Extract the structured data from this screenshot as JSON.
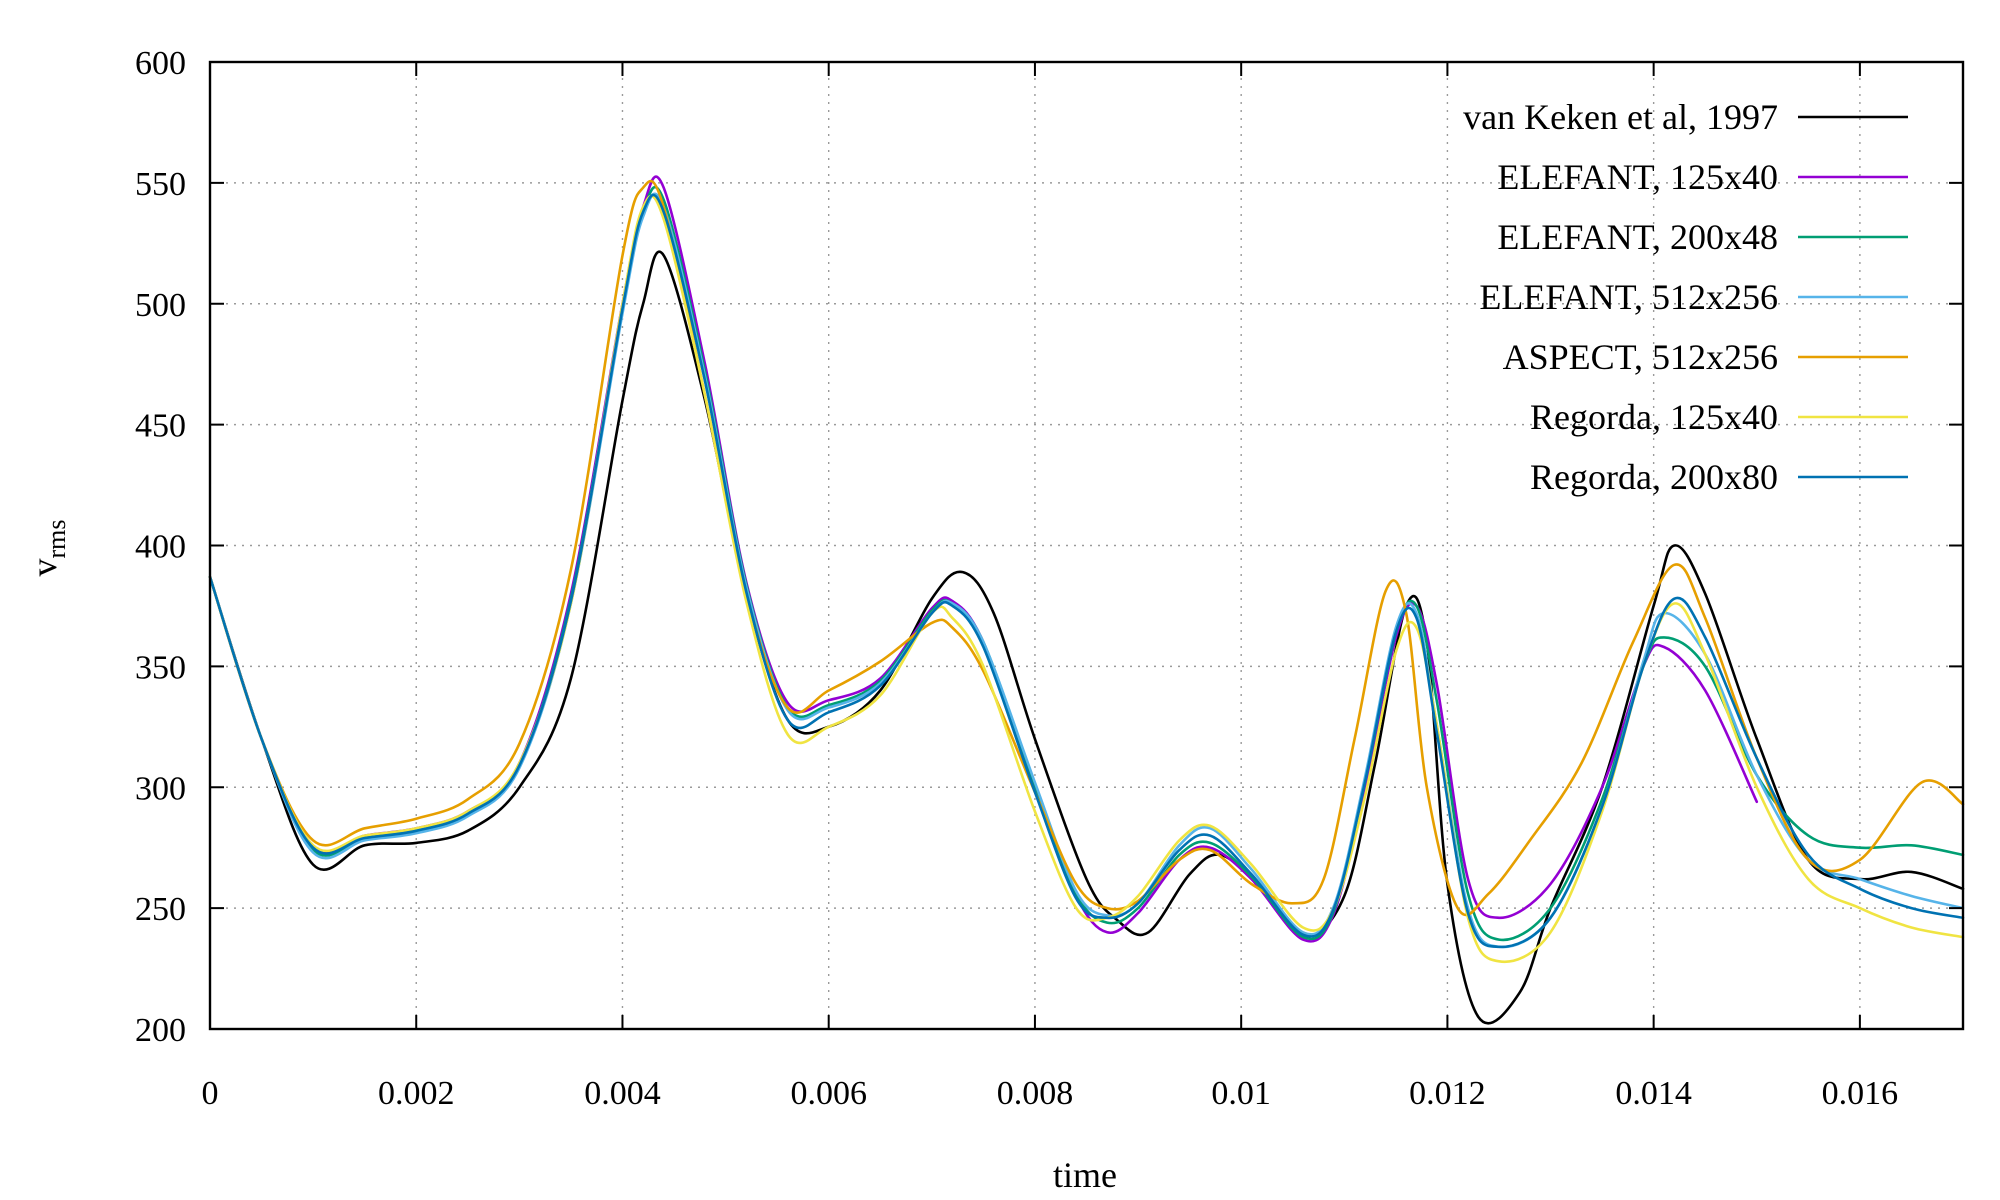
{
  "chart_data": {
    "type": "line",
    "title": "",
    "xlabel": "time",
    "ylabel": "v",
    "ylabel_sub": "rms",
    "xlim": [
      0,
      0.017
    ],
    "ylim": [
      200,
      600
    ],
    "x_ticks": [
      0,
      0.002,
      0.004,
      0.006,
      0.008,
      0.01,
      0.012,
      0.014,
      0.016
    ],
    "x_tick_labels": [
      "0",
      "0.002",
      "0.004",
      "0.006",
      "0.008",
      "0.01",
      "0.012",
      "0.014",
      "0.016"
    ],
    "y_ticks": [
      200,
      250,
      300,
      350,
      400,
      450,
      500,
      550,
      600
    ],
    "y_tick_labels": [
      "200",
      "250",
      "300",
      "350",
      "400",
      "450",
      "500",
      "550",
      "600"
    ],
    "grid": true,
    "legend_position": "top-right",
    "series": [
      {
        "name": "van Keken et al, 1997",
        "color": "#000000",
        "x": [
          0,
          0.0005,
          0.001,
          0.0015,
          0.002,
          0.0025,
          0.003,
          0.0035,
          0.004,
          0.0042,
          0.0044,
          0.0048,
          0.0052,
          0.0056,
          0.006,
          0.0065,
          0.007,
          0.0073,
          0.0076,
          0.008,
          0.0085,
          0.0088,
          0.0091,
          0.0095,
          0.0098,
          0.0102,
          0.0106,
          0.011,
          0.0113,
          0.0116,
          0.0118,
          0.012,
          0.0123,
          0.0127,
          0.013,
          0.0135,
          0.014,
          0.0142,
          0.0145,
          0.015,
          0.0155,
          0.016,
          0.0165,
          0.017
        ],
        "y": [
          387,
          320,
          268,
          276,
          277,
          282,
          300,
          345,
          460,
          500,
          520,
          460,
          380,
          328,
          325,
          340,
          378,
          389,
          372,
          320,
          262,
          245,
          240,
          264,
          272,
          258,
          238,
          255,
          310,
          375,
          360,
          260,
          205,
          215,
          250,
          300,
          375,
          400,
          380,
          320,
          270,
          262,
          265,
          258
        ]
      },
      {
        "name": "ELEFANT, 125x40",
        "color": "#9400d3",
        "x": [
          0,
          0.0005,
          0.001,
          0.0015,
          0.002,
          0.0025,
          0.003,
          0.0035,
          0.004,
          0.0042,
          0.0044,
          0.0048,
          0.0052,
          0.0056,
          0.006,
          0.0065,
          0.007,
          0.0072,
          0.0075,
          0.008,
          0.0084,
          0.0087,
          0.009,
          0.0094,
          0.0097,
          0.0101,
          0.0106,
          0.0109,
          0.0112,
          0.0115,
          0.0117,
          0.0119,
          0.0122,
          0.0125,
          0.013,
          0.0135,
          0.0139,
          0.0141,
          0.0145,
          0.015
        ],
        "y": [
          387,
          320,
          275,
          280,
          283,
          290,
          310,
          380,
          500,
          540,
          548,
          475,
          385,
          335,
          336,
          345,
          374,
          377,
          360,
          300,
          255,
          240,
          248,
          270,
          275,
          262,
          237,
          248,
          300,
          362,
          375,
          342,
          262,
          246,
          260,
          300,
          350,
          358,
          340,
          294
        ]
      },
      {
        "name": "ELEFANT, 200x48",
        "color": "#009e73",
        "x": [
          0,
          0.0005,
          0.001,
          0.0015,
          0.002,
          0.0025,
          0.003,
          0.0035,
          0.004,
          0.0042,
          0.0044,
          0.0048,
          0.0052,
          0.0056,
          0.006,
          0.0065,
          0.007,
          0.0072,
          0.0075,
          0.008,
          0.0084,
          0.0087,
          0.009,
          0.0094,
          0.0097,
          0.0101,
          0.0106,
          0.0109,
          0.0112,
          0.0115,
          0.0117,
          0.0119,
          0.0122,
          0.0125,
          0.013,
          0.0135,
          0.0139,
          0.0141,
          0.0145,
          0.015,
          0.0155,
          0.016,
          0.0165,
          0.017
        ],
        "y": [
          387,
          320,
          274,
          279,
          282,
          289,
          309,
          378,
          498,
          538,
          543,
          472,
          384,
          333,
          334,
          344,
          373,
          376,
          360,
          301,
          256,
          244,
          250,
          272,
          277,
          263,
          238,
          249,
          302,
          364,
          375,
          335,
          256,
          237,
          250,
          295,
          350,
          362,
          350,
          305,
          280,
          275,
          276,
          272
        ]
      },
      {
        "name": "ELEFANT, 512x256",
        "color": "#56b4e9",
        "x": [
          0,
          0.0005,
          0.001,
          0.0015,
          0.002,
          0.0025,
          0.003,
          0.0035,
          0.004,
          0.0042,
          0.0044,
          0.0048,
          0.0052,
          0.0056,
          0.006,
          0.0065,
          0.007,
          0.0072,
          0.0075,
          0.008,
          0.0084,
          0.0087,
          0.009,
          0.0094,
          0.0097,
          0.0101,
          0.0106,
          0.0109,
          0.0112,
          0.0115,
          0.0117,
          0.0119,
          0.0122,
          0.0125,
          0.013,
          0.0135,
          0.0139,
          0.0141,
          0.0145,
          0.015,
          0.0155,
          0.016,
          0.0165,
          0.017
        ],
        "y": [
          387,
          320,
          273,
          278,
          281,
          288,
          308,
          376,
          496,
          536,
          540,
          470,
          383,
          332,
          333,
          343,
          372,
          376,
          360,
          302,
          257,
          247,
          252,
          276,
          283,
          266,
          240,
          251,
          304,
          366,
          372,
          325,
          250,
          234,
          246,
          292,
          352,
          372,
          355,
          305,
          270,
          262,
          255,
          250
        ]
      },
      {
        "name": "ASPECT, 512x256",
        "color": "#e69f00",
        "x": [
          0,
          0.0005,
          0.001,
          0.0015,
          0.002,
          0.0025,
          0.003,
          0.0035,
          0.004,
          0.0042,
          0.0044,
          0.0048,
          0.0052,
          0.0056,
          0.006,
          0.0065,
          0.007,
          0.0072,
          0.0075,
          0.008,
          0.0084,
          0.0087,
          0.009,
          0.0094,
          0.0097,
          0.0101,
          0.0105,
          0.0108,
          0.0111,
          0.0114,
          0.0116,
          0.0118,
          0.0121,
          0.0124,
          0.0128,
          0.0133,
          0.0138,
          0.0142,
          0.0145,
          0.015,
          0.0155,
          0.016,
          0.0166,
          0.017
        ],
        "y": [
          387,
          320,
          278,
          283,
          287,
          295,
          318,
          390,
          520,
          548,
          540,
          462,
          380,
          333,
          340,
          352,
          368,
          366,
          348,
          298,
          260,
          250,
          253,
          270,
          274,
          260,
          252,
          262,
          320,
          381,
          372,
          300,
          250,
          256,
          278,
          310,
          360,
          392,
          370,
          312,
          270,
          270,
          302,
          293
        ]
      },
      {
        "name": "Regorda, 125x40",
        "color": "#f0e442",
        "x": [
          0,
          0.0005,
          0.001,
          0.0015,
          0.002,
          0.0025,
          0.003,
          0.0035,
          0.004,
          0.0042,
          0.0044,
          0.0048,
          0.0052,
          0.0056,
          0.006,
          0.0065,
          0.007,
          0.0072,
          0.0075,
          0.008,
          0.0084,
          0.0087,
          0.009,
          0.0094,
          0.0097,
          0.0101,
          0.0106,
          0.0109,
          0.0112,
          0.0115,
          0.0117,
          0.0119,
          0.0122,
          0.0125,
          0.013,
          0.0135,
          0.0139,
          0.0142,
          0.0145,
          0.015,
          0.0155,
          0.016,
          0.0165,
          0.017
        ],
        "y": [
          387,
          320,
          276,
          280,
          283,
          290,
          310,
          376,
          500,
          540,
          535,
          462,
          377,
          322,
          325,
          338,
          372,
          370,
          350,
          290,
          250,
          246,
          255,
          278,
          284,
          268,
          242,
          250,
          296,
          356,
          366,
          325,
          246,
          228,
          240,
          290,
          350,
          376,
          355,
          300,
          262,
          250,
          242,
          238
        ]
      },
      {
        "name": "Regorda, 200x80",
        "color": "#0072b2",
        "x": [
          0,
          0.0005,
          0.001,
          0.0015,
          0.002,
          0.0025,
          0.003,
          0.0035,
          0.004,
          0.0042,
          0.0044,
          0.0048,
          0.0052,
          0.0056,
          0.006,
          0.0065,
          0.007,
          0.0072,
          0.0075,
          0.008,
          0.0084,
          0.0087,
          0.009,
          0.0094,
          0.0097,
          0.0101,
          0.0106,
          0.0109,
          0.0112,
          0.0115,
          0.0117,
          0.0119,
          0.0122,
          0.0125,
          0.013,
          0.0135,
          0.0139,
          0.0142,
          0.0145,
          0.015,
          0.0155,
          0.016,
          0.0165,
          0.017
        ],
        "y": [
          387,
          320,
          275,
          279,
          282,
          289,
          309,
          377,
          498,
          538,
          538,
          468,
          381,
          328,
          331,
          342,
          372,
          375,
          358,
          298,
          254,
          246,
          252,
          274,
          280,
          264,
          239,
          250,
          302,
          364,
          370,
          322,
          248,
          234,
          246,
          292,
          350,
          378,
          362,
          312,
          272,
          258,
          250,
          246
        ]
      }
    ]
  }
}
